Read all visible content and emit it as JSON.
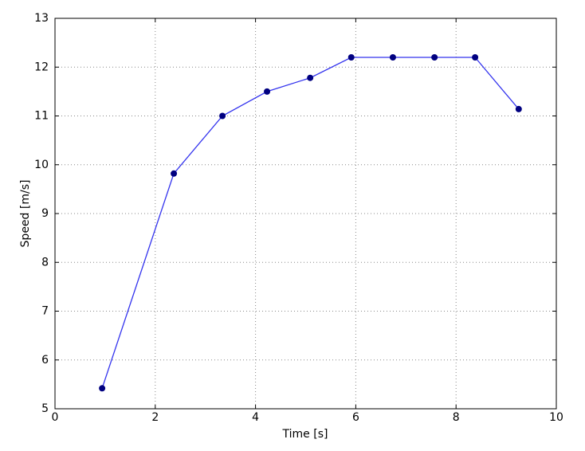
{
  "chart_data": {
    "type": "line",
    "x_label": "Time [s]",
    "y_label": "Speed [m/s]",
    "x": [
      0.94,
      2.37,
      3.34,
      4.23,
      5.09,
      5.91,
      6.74,
      7.57,
      8.38,
      9.25
    ],
    "series": [
      {
        "name": "Speed",
        "line_color": "#3333ee",
        "color": "#000080",
        "values": [
          5.42,
          9.82,
          11.0,
          11.5,
          11.78,
          12.2,
          12.2,
          12.2,
          12.2,
          11.14
        ]
      }
    ],
    "xlim": [
      0,
      10
    ],
    "xticks": [
      0,
      2,
      4,
      6,
      8,
      10
    ],
    "ylim": [
      5,
      13
    ],
    "yticks": [
      5,
      6,
      7,
      8,
      9,
      10,
      11,
      12,
      13
    ],
    "grid": true
  }
}
